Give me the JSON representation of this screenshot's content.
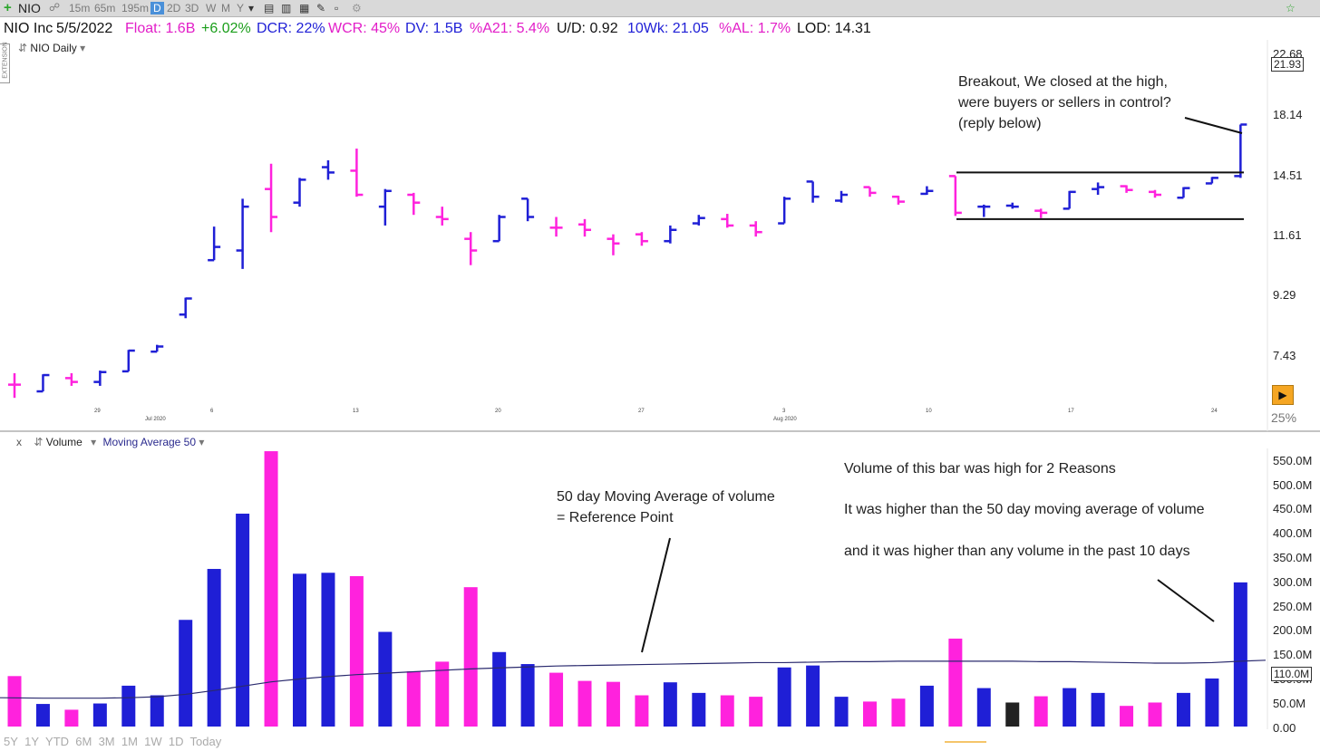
{
  "toolbar": {
    "symbol": "NIO",
    "timeframes": [
      "15m",
      "65m",
      "195m",
      "D",
      "2D",
      "3D",
      "W",
      "M",
      "Y"
    ],
    "selected_timeframe": "D",
    "bottom_ranges": [
      "5Y",
      "1Y",
      "YTD",
      "6M",
      "3M",
      "1M",
      "1W",
      "1D",
      "Today"
    ]
  },
  "info": {
    "name": "NIO Inc",
    "date": "5/5/2022",
    "float": "Float: 1.6B",
    "change": "+6.02%",
    "dcr": "DCR: 22%",
    "wcr": "WCR: 45%",
    "dv": "DV: 1.5B",
    "a21": "%A21: 5.4%",
    "ud": "U/D: 0.92",
    "wk10": "10Wk: 21.05",
    "al": "%AL: 1.7%",
    "lod": "LOD: 14.31"
  },
  "price_panel": {
    "label": "NIO Daily",
    "side_tab": "EXTENSION",
    "zoom": "25%",
    "current_price": "21.93",
    "y_ticks": [
      "22.68",
      "18.14",
      "14.51",
      "11.61",
      "9.29",
      "7.43"
    ],
    "x_ticks": [
      "29",
      "Jul 2020",
      "6",
      "13",
      "20",
      "27",
      "3",
      "Aug 2020",
      "10",
      "17",
      "24"
    ]
  },
  "volume_panel": {
    "label": "Volume",
    "indicator": "Moving Average 50",
    "close_symbol": "x",
    "current_volume": "110.0M",
    "y_ticks": [
      "550.0M",
      "500.0M",
      "450.0M",
      "400.0M",
      "350.0M",
      "300.0M",
      "250.0M",
      "200.0M",
      "150.0M",
      "100.0M",
      "50.0M",
      "0.00"
    ]
  },
  "annotations": {
    "breakout": [
      "Breakout, We closed at the high,",
      "were buyers or sellers in control?",
      "(reply below)"
    ],
    "ma_note": [
      "50 day Moving Average of volume",
      "= Reference Point"
    ],
    "volume_note_1": "Volume of this bar was high for 2 Reasons",
    "volume_note_2": "It was higher than the 50 day moving average of volume",
    "volume_note_3": "and it was higher than any volume in the past 10 days"
  },
  "colors": {
    "up": "#1f1fd6",
    "down": "#ff22dd",
    "neutral": "#222222",
    "ma": "#2a2a6e"
  },
  "chart_data": [
    {
      "type": "ohlc",
      "title": "NIO Daily",
      "scale": "log",
      "ylim": [
        6.3,
        23.5
      ],
      "y_ticks": [
        7.43,
        9.29,
        11.61,
        14.51,
        18.14,
        22.68
      ],
      "bars": [
        {
          "o": 6.95,
          "h": 7.25,
          "l": 6.62,
          "c": 6.95,
          "dir": "down"
        },
        {
          "o": 6.78,
          "h": 7.22,
          "l": 6.78,
          "c": 7.2,
          "dir": "up"
        },
        {
          "o": 7.12,
          "h": 7.25,
          "l": 6.92,
          "c": 7.02,
          "dir": "down"
        },
        {
          "o": 7.02,
          "h": 7.32,
          "l": 6.92,
          "c": 7.28,
          "dir": "up"
        },
        {
          "o": 7.3,
          "h": 7.9,
          "l": 7.3,
          "c": 7.88,
          "dir": "up"
        },
        {
          "o": 7.85,
          "h": 8.05,
          "l": 7.85,
          "c": 8.0,
          "dir": "up"
        },
        {
          "o": 9.0,
          "h": 9.58,
          "l": 8.88,
          "c": 9.55,
          "dir": "up"
        },
        {
          "o": 11.0,
          "h": 12.45,
          "l": 11.0,
          "c": 11.55,
          "dir": "up"
        },
        {
          "o": 11.4,
          "h": 13.8,
          "l": 10.65,
          "c": 13.4,
          "dir": "up"
        },
        {
          "o": 14.3,
          "h": 15.7,
          "l": 12.2,
          "c": 12.9,
          "dir": "down"
        },
        {
          "o": 13.6,
          "h": 14.9,
          "l": 13.4,
          "c": 14.8,
          "dir": "up"
        },
        {
          "o": 15.5,
          "h": 15.9,
          "l": 14.8,
          "c": 15.2,
          "dir": "up"
        },
        {
          "o": 15.3,
          "h": 16.6,
          "l": 13.9,
          "c": 14.0,
          "dir": "down"
        },
        {
          "o": 13.4,
          "h": 14.3,
          "l": 12.5,
          "c": 14.2,
          "dir": "up"
        },
        {
          "o": 14.0,
          "h": 14.1,
          "l": 13.0,
          "c": 13.6,
          "dir": "down"
        },
        {
          "o": 12.9,
          "h": 13.4,
          "l": 12.5,
          "c": 12.8,
          "dir": "down"
        },
        {
          "o": 11.9,
          "h": 12.2,
          "l": 10.8,
          "c": 11.4,
          "dir": "down"
        },
        {
          "o": 11.8,
          "h": 13.0,
          "l": 11.8,
          "c": 12.9,
          "dir": "up"
        },
        {
          "o": 13.8,
          "h": 13.8,
          "l": 12.7,
          "c": 12.9,
          "dir": "up"
        },
        {
          "o": 12.4,
          "h": 12.9,
          "l": 12.0,
          "c": 12.4,
          "dir": "down"
        },
        {
          "o": 12.55,
          "h": 12.8,
          "l": 12.0,
          "c": 12.3,
          "dir": "down"
        },
        {
          "o": 11.9,
          "h": 12.1,
          "l": 11.2,
          "c": 11.7,
          "dir": "down"
        },
        {
          "o": 12.1,
          "h": 12.2,
          "l": 11.6,
          "c": 11.8,
          "dir": "down"
        },
        {
          "o": 11.8,
          "h": 12.5,
          "l": 11.7,
          "c": 12.3,
          "dir": "up"
        },
        {
          "o": 12.6,
          "h": 13.0,
          "l": 12.5,
          "c": 12.85,
          "dir": "up"
        },
        {
          "o": 12.8,
          "h": 13.05,
          "l": 12.4,
          "c": 12.5,
          "dir": "down"
        },
        {
          "o": 12.5,
          "h": 12.7,
          "l": 12.0,
          "c": 12.2,
          "dir": "down"
        },
        {
          "o": 12.6,
          "h": 13.9,
          "l": 12.6,
          "c": 13.8,
          "dir": "up"
        },
        {
          "o": 14.7,
          "h": 14.7,
          "l": 13.6,
          "c": 13.9,
          "dir": "up"
        },
        {
          "o": 13.7,
          "h": 14.2,
          "l": 13.6,
          "c": 14.0,
          "dir": "up"
        },
        {
          "o": 14.4,
          "h": 14.4,
          "l": 13.9,
          "c": 14.1,
          "dir": "down"
        },
        {
          "o": 13.9,
          "h": 13.95,
          "l": 13.5,
          "c": 13.65,
          "dir": "down"
        },
        {
          "o": 14.05,
          "h": 14.45,
          "l": 14.0,
          "c": 14.2,
          "dir": "up"
        },
        {
          "o": 15.0,
          "h": 15.0,
          "l": 12.95,
          "c": 13.1,
          "dir": "down"
        },
        {
          "o": 13.4,
          "h": 13.5,
          "l": 12.9,
          "c": 13.4,
          "dir": "up"
        },
        {
          "o": 13.45,
          "h": 13.6,
          "l": 13.3,
          "c": 13.4,
          "dir": "up"
        },
        {
          "o": 13.2,
          "h": 13.3,
          "l": 12.85,
          "c": 13.1,
          "dir": "down"
        },
        {
          "o": 13.3,
          "h": 14.2,
          "l": 13.3,
          "c": 14.15,
          "dir": "up"
        },
        {
          "o": 14.3,
          "h": 14.65,
          "l": 14.0,
          "c": 14.4,
          "dir": "up"
        },
        {
          "o": 14.45,
          "h": 14.5,
          "l": 14.1,
          "c": 14.25,
          "dir": "down"
        },
        {
          "o": 14.15,
          "h": 14.25,
          "l": 13.85,
          "c": 14.0,
          "dir": "down"
        },
        {
          "o": 13.85,
          "h": 14.4,
          "l": 13.85,
          "c": 14.35,
          "dir": "up"
        },
        {
          "o": 14.6,
          "h": 14.95,
          "l": 14.6,
          "c": 14.9,
          "dir": "up"
        },
        {
          "o": 15.0,
          "h": 18.14,
          "l": 14.9,
          "c": 18.14,
          "dir": "up"
        }
      ],
      "range_lines": [
        15.2,
        12.8
      ]
    },
    {
      "type": "bar",
      "title": "Volume",
      "ylim": [
        0,
        575
      ],
      "unit": "M",
      "values": [
        105,
        47,
        35,
        48,
        85,
        65,
        222,
        328,
        443,
        573,
        318,
        320,
        313,
        197,
        115,
        135,
        290,
        155,
        130,
        112,
        95,
        93,
        65,
        92,
        70,
        65,
        62,
        123,
        127,
        62,
        52,
        58,
        85,
        183,
        80,
        50,
        63,
        80,
        70,
        43,
        50,
        70,
        100,
        300
      ],
      "dirs": [
        "down",
        "up",
        "down",
        "up",
        "up",
        "up",
        "up",
        "up",
        "up",
        "down",
        "up",
        "up",
        "down",
        "up",
        "down",
        "down",
        "down",
        "up",
        "up",
        "down",
        "down",
        "down",
        "down",
        "up",
        "up",
        "down",
        "down",
        "up",
        "up",
        "up",
        "down",
        "down",
        "up",
        "down",
        "up",
        "neutral",
        "down",
        "up",
        "up",
        "down",
        "down",
        "up",
        "up",
        "up"
      ],
      "ma50": [
        60,
        59,
        59,
        59,
        60,
        62,
        67,
        75,
        84,
        93,
        99,
        104,
        108,
        111,
        114,
        117,
        120,
        122,
        124,
        126,
        127,
        128,
        129,
        130,
        131,
        132,
        133,
        133,
        134,
        135,
        135,
        136,
        136,
        136,
        136,
        136,
        135,
        135,
        134,
        133,
        132,
        132,
        133,
        136
      ]
    }
  ]
}
